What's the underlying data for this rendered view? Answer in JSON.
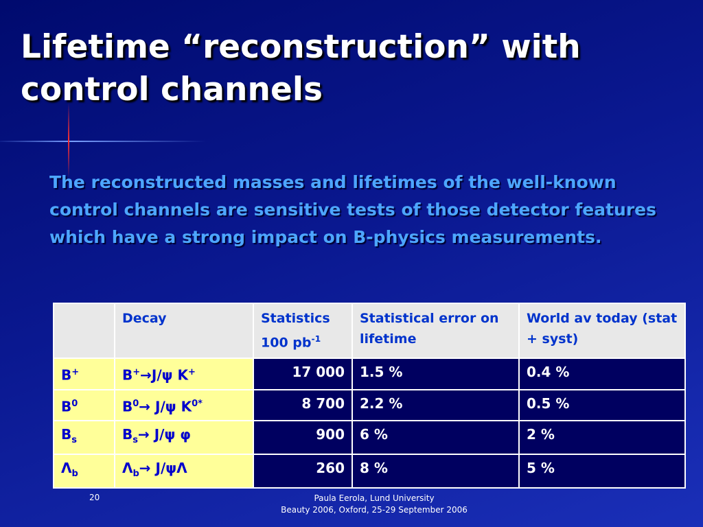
{
  "title": "Lifetime “reconstruction” with control channels",
  "body": "The reconstructed masses and lifetimes of the well-known control channels are sensitive tests of those detector features which have a strong impact on B-physics measurements.",
  "table": {
    "header": [
      [
        {
          "text": "Decay"
        }
      ],
      [
        {
          "text": "Statistics"
        },
        {
          "br": "100 pb"
        },
        {
          "sup": "-1"
        }
      ],
      [
        {
          "text": "Statistical error on lifetime"
        }
      ],
      [
        {
          "text": "World av today (stat + syst)"
        }
      ]
    ],
    "rows": [
      [
        [
          {
            "text": "B"
          },
          {
            "sup": "+"
          }
        ],
        [
          {
            "text": "B"
          },
          {
            "sup": "+"
          },
          {
            "text": "→J/ψ K"
          },
          {
            "sup": "+"
          }
        ],
        [
          {
            "text": "17 000"
          }
        ],
        [
          {
            "text": "1.5 %"
          }
        ],
        [
          {
            "text": "0.4 %"
          }
        ]
      ],
      [
        [
          {
            "text": "B"
          },
          {
            "sup": "0"
          }
        ],
        [
          {
            "text": "B"
          },
          {
            "sup": "0"
          },
          {
            "text": "→ J/ψ K"
          },
          {
            "sup": "0*"
          }
        ],
        [
          {
            "text": "8 700"
          }
        ],
        [
          {
            "text": "2.2 %"
          }
        ],
        [
          {
            "text": "0.5 %"
          }
        ]
      ],
      [
        [
          {
            "text": "B"
          },
          {
            "sub": "s"
          }
        ],
        [
          {
            "text": "B"
          },
          {
            "sub": "s"
          },
          {
            "text": "→ J/ψ φ"
          }
        ],
        [
          {
            "text": "900"
          }
        ],
        [
          {
            "text": "6 %"
          }
        ],
        [
          {
            "text": "2 %"
          }
        ]
      ],
      [
        [
          {
            "text": "Λ"
          },
          {
            "sub": "b"
          }
        ],
        [
          {
            "text": "Λ"
          },
          {
            "sub": "b"
          },
          {
            "text": "→ J/ψΛ"
          }
        ],
        [
          {
            "text": "260"
          }
        ],
        [
          {
            "text": "8 %"
          }
        ],
        [
          {
            "text": "5 %"
          }
        ]
      ]
    ]
  },
  "footer": {
    "page": "20",
    "line1": "Paula Eerola, Lund University",
    "line2": "Beauty 2006, Oxford, 25-29 September 2006"
  }
}
